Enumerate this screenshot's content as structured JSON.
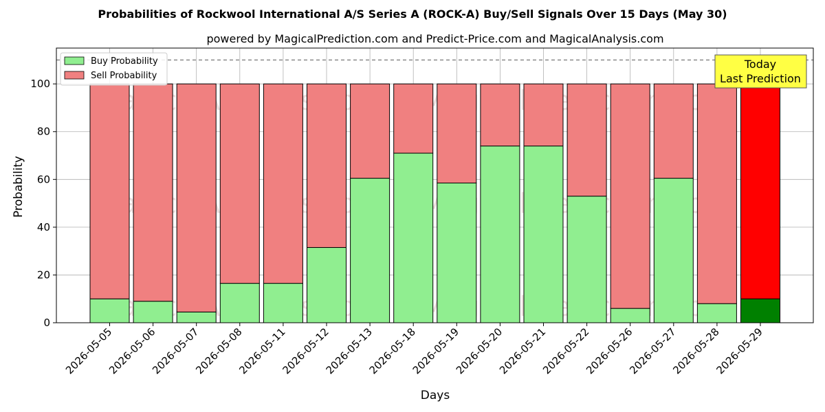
{
  "chart_data": {
    "type": "bar",
    "stacked": true,
    "title": "Probabilities of Rockwool International A/S Series A (ROCK-A) Buy/Sell Signals Over 15 Days (May 30)",
    "subtitle": "powered by MagicalPrediction.com and Predict-Price.com and MagicalAnalysis.com",
    "xlabel": "Days",
    "ylabel": "Probability",
    "ylim": [
      0,
      115
    ],
    "yticks": [
      0,
      20,
      40,
      60,
      80,
      100
    ],
    "reference_line": 110,
    "grid": true,
    "legend_placement": "top-left",
    "categories": [
      "2026-05-05",
      "2026-05-06",
      "2026-05-07",
      "2026-05-08",
      "2026-05-11",
      "2026-05-12",
      "2026-05-13",
      "2026-05-18",
      "2026-05-19",
      "2026-05-20",
      "2026-05-21",
      "2026-05-22",
      "2026-05-26",
      "2026-05-27",
      "2026-05-28",
      "2026-05-29"
    ],
    "series": [
      {
        "name": "Buy Probability",
        "color": "#90ee90",
        "highlight_color": "#008000",
        "values": [
          10,
          9,
          4.5,
          16.5,
          16.5,
          31.5,
          60.5,
          71,
          58.5,
          74,
          74,
          53,
          6,
          60.5,
          8,
          10
        ]
      },
      {
        "name": "Sell Probability",
        "color": "#f08080",
        "highlight_color": "#ff0000",
        "values": [
          90,
          91,
          95.5,
          83.5,
          83.5,
          68.5,
          39.5,
          29,
          41.5,
          26,
          26,
          47,
          94,
          39.5,
          92,
          90
        ]
      }
    ],
    "highlight_index": 15,
    "annotation": {
      "lines": [
        "Today",
        "Last Prediction"
      ],
      "color": "#ffff44"
    },
    "watermarks": [
      "MagicalAnalysis.com",
      "MagicalPrediction.com"
    ]
  }
}
